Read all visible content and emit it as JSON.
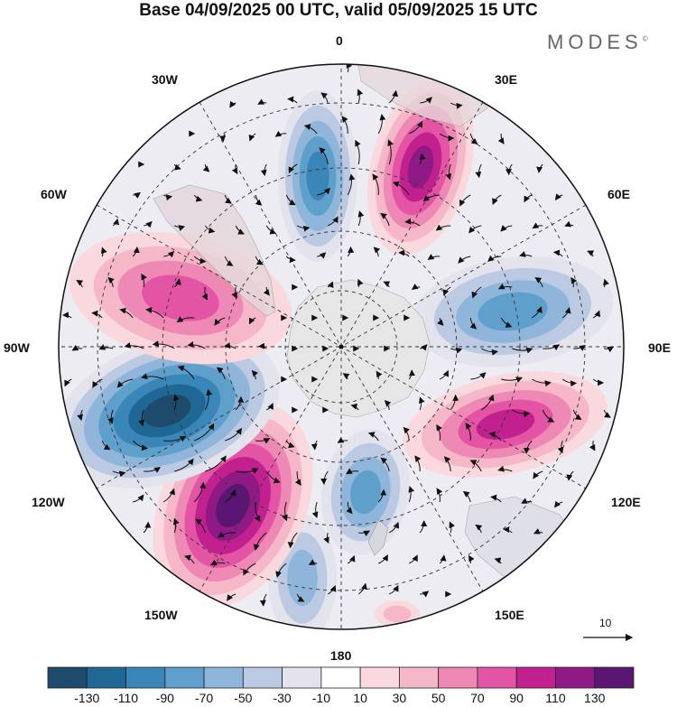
{
  "header": {
    "title": "Base 04/09/2025 00 UTC, valid 05/09/2025 15 UTC",
    "brand": "MODES",
    "brand_mark": "©"
  },
  "map": {
    "projection": "south polar stereographic",
    "longitude_labels": {
      "top": "0",
      "top_right": "30E",
      "upper_right": "60E",
      "right": "90E",
      "lower_right": "120E",
      "bottom_right": "150E",
      "bottom": "180",
      "bottom_left": "150W",
      "lower_left": "120W",
      "left": "90W",
      "upper_left": "60W",
      "top_left": "30W"
    },
    "reference_vector": "10"
  },
  "colorbar": {
    "tick_labels": [
      "-130",
      "-110",
      "-90",
      "-70",
      "-50",
      "-30",
      "-10",
      "10",
      "30",
      "50",
      "70",
      "90",
      "110",
      "130"
    ],
    "colors": [
      "#1e4b6b",
      "#1f6794",
      "#3a86b8",
      "#5f9fcb",
      "#8fb6da",
      "#bcc9e2",
      "#e3e3ee",
      "#ffffff",
      "#f9d9de",
      "#f6b8c9",
      "#ee88b4",
      "#e354a4",
      "#c21f8f",
      "#8f1a86",
      "#5a1672"
    ]
  },
  "anomaly_centers": [
    {
      "name": "blue-0",
      "lon": 5,
      "value": -90
    },
    {
      "name": "magenta-30e",
      "lon": 30,
      "value": 110
    },
    {
      "name": "blue-75e",
      "lon": 78,
      "value": -80
    },
    {
      "name": "magenta-115e",
      "lon": 115,
      "value": 100
    },
    {
      "name": "blue-165e",
      "lon": 165,
      "value": -70
    },
    {
      "name": "blue-170w",
      "lon": -172,
      "value": -50
    },
    {
      "name": "magenta-140w",
      "lon": -145,
      "value": 130
    },
    {
      "name": "blue-110w",
      "lon": -112,
      "value": -130
    },
    {
      "name": "pink-70w",
      "lon": -72,
      "value": 80
    },
    {
      "name": "pink-155e",
      "lon": 152,
      "value": 30
    }
  ]
}
